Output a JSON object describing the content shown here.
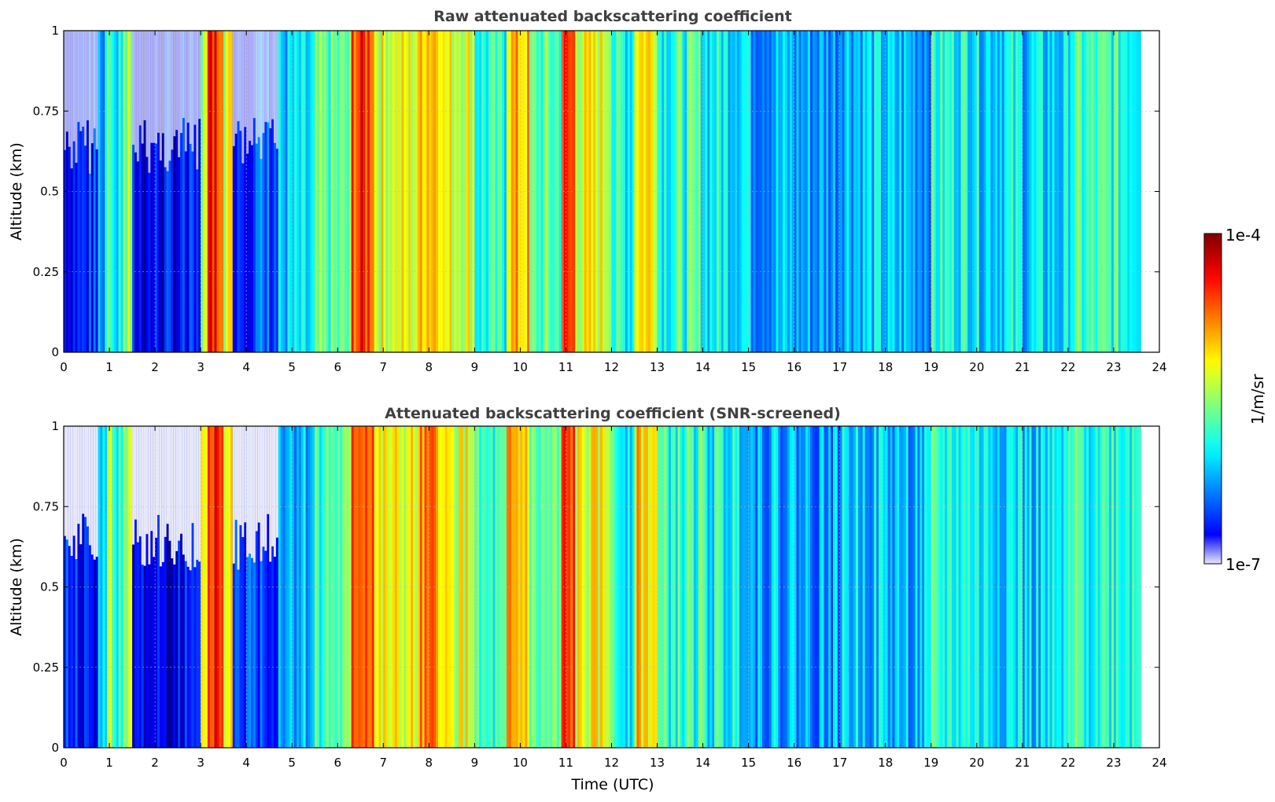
{
  "chart_data": [
    {
      "type": "heatmap",
      "title": "Raw attenuated backscattering coefficient",
      "xlabel": "",
      "ylabel": "Altitude (km)",
      "xlim": [
        0,
        24
      ],
      "ylim": [
        0,
        1
      ],
      "x_ticks": [
        "0",
        "1",
        "2",
        "3",
        "4",
        "5",
        "6",
        "7",
        "8",
        "9",
        "10",
        "11",
        "12",
        "13",
        "14",
        "15",
        "16",
        "17",
        "18",
        "19",
        "20",
        "21",
        "22",
        "23",
        "24"
      ],
      "y_ticks": [
        "0",
        "0.25",
        "0.5",
        "0.75",
        "1"
      ],
      "y_tick_values": [
        0,
        0.25,
        0.5,
        0.75,
        1
      ],
      "grid": true,
      "data_end_time": 23.6,
      "bands": [
        {
          "t0": 0.0,
          "t1": 0.75,
          "level": 0.15
        },
        {
          "t0": 0.75,
          "t1": 0.95,
          "level": 0.3
        },
        {
          "t0": 0.95,
          "t1": 1.05,
          "level": 0.5
        },
        {
          "t0": 1.05,
          "t1": 1.3,
          "level": 0.38
        },
        {
          "t0": 1.3,
          "t1": 1.5,
          "level": 0.55
        },
        {
          "t0": 1.5,
          "t1": 3.0,
          "level": 0.12
        },
        {
          "t0": 3.0,
          "t1": 3.15,
          "level": 0.55
        },
        {
          "t0": 3.15,
          "t1": 3.5,
          "level": 0.85
        },
        {
          "t0": 3.5,
          "t1": 3.7,
          "level": 0.6
        },
        {
          "t0": 3.7,
          "t1": 4.7,
          "level": 0.2
        },
        {
          "t0": 4.7,
          "t1": 5.5,
          "level": 0.32
        },
        {
          "t0": 5.5,
          "t1": 6.3,
          "level": 0.45
        },
        {
          "t0": 6.3,
          "t1": 6.8,
          "level": 0.82
        },
        {
          "t0": 6.8,
          "t1": 7.8,
          "level": 0.6
        },
        {
          "t0": 7.8,
          "t1": 8.3,
          "level": 0.72
        },
        {
          "t0": 8.3,
          "t1": 9.0,
          "level": 0.6
        },
        {
          "t0": 9.0,
          "t1": 9.7,
          "level": 0.4
        },
        {
          "t0": 9.7,
          "t1": 10.2,
          "level": 0.68
        },
        {
          "t0": 10.2,
          "t1": 10.9,
          "level": 0.45
        },
        {
          "t0": 10.9,
          "t1": 11.2,
          "level": 0.8
        },
        {
          "t0": 11.2,
          "t1": 12.0,
          "level": 0.6
        },
        {
          "t0": 12.0,
          "t1": 12.5,
          "level": 0.4
        },
        {
          "t0": 12.5,
          "t1": 13.0,
          "level": 0.66
        },
        {
          "t0": 13.0,
          "t1": 14.0,
          "level": 0.42
        },
        {
          "t0": 14.0,
          "t1": 15.0,
          "level": 0.38
        },
        {
          "t0": 15.0,
          "t1": 16.0,
          "level": 0.3
        },
        {
          "t0": 16.0,
          "t1": 17.0,
          "level": 0.28
        },
        {
          "t0": 17.0,
          "t1": 18.0,
          "level": 0.33
        },
        {
          "t0": 18.0,
          "t1": 19.0,
          "level": 0.3
        },
        {
          "t0": 19.0,
          "t1": 20.0,
          "level": 0.4
        },
        {
          "t0": 20.0,
          "t1": 21.0,
          "level": 0.36
        },
        {
          "t0": 21.0,
          "t1": 22.0,
          "level": 0.33
        },
        {
          "t0": 22.0,
          "t1": 23.6,
          "level": 0.42
        }
      ]
    },
    {
      "type": "heatmap",
      "title": "Attenuated backscattering coefficient (SNR-screened)",
      "xlabel": "Time (UTC)",
      "ylabel": "Altitude (km)",
      "xlim": [
        0,
        24
      ],
      "ylim": [
        0,
        1
      ],
      "x_ticks": [
        "0",
        "1",
        "2",
        "3",
        "4",
        "5",
        "6",
        "7",
        "8",
        "9",
        "10",
        "11",
        "12",
        "13",
        "14",
        "15",
        "16",
        "17",
        "18",
        "19",
        "20",
        "21",
        "22",
        "23",
        "24"
      ],
      "y_ticks": [
        "0",
        "0.25",
        "0.5",
        "0.75",
        "1"
      ],
      "y_tick_values": [
        0,
        0.25,
        0.5,
        0.75,
        1
      ],
      "grid": true,
      "data_end_time": 23.6,
      "bands": [
        {
          "t0": 0.0,
          "t1": 0.75,
          "level": 0.15
        },
        {
          "t0": 0.75,
          "t1": 0.95,
          "level": 0.3
        },
        {
          "t0": 0.95,
          "t1": 1.05,
          "level": 0.5
        },
        {
          "t0": 1.05,
          "t1": 1.3,
          "level": 0.38
        },
        {
          "t0": 1.3,
          "t1": 1.5,
          "level": 0.55
        },
        {
          "t0": 1.5,
          "t1": 3.0,
          "level": 0.12
        },
        {
          "t0": 3.0,
          "t1": 3.15,
          "level": 0.55
        },
        {
          "t0": 3.15,
          "t1": 3.5,
          "level": 0.85
        },
        {
          "t0": 3.5,
          "t1": 3.7,
          "level": 0.6
        },
        {
          "t0": 3.7,
          "t1": 4.7,
          "level": 0.2
        },
        {
          "t0": 4.7,
          "t1": 5.5,
          "level": 0.32
        },
        {
          "t0": 5.5,
          "t1": 6.3,
          "level": 0.45
        },
        {
          "t0": 6.3,
          "t1": 6.8,
          "level": 0.82
        },
        {
          "t0": 6.8,
          "t1": 7.8,
          "level": 0.6
        },
        {
          "t0": 7.8,
          "t1": 8.3,
          "level": 0.72
        },
        {
          "t0": 8.3,
          "t1": 9.0,
          "level": 0.6
        },
        {
          "t0": 9.0,
          "t1": 9.7,
          "level": 0.4
        },
        {
          "t0": 9.7,
          "t1": 10.2,
          "level": 0.68
        },
        {
          "t0": 10.2,
          "t1": 10.9,
          "level": 0.45
        },
        {
          "t0": 10.9,
          "t1": 11.2,
          "level": 0.8
        },
        {
          "t0": 11.2,
          "t1": 12.0,
          "level": 0.6
        },
        {
          "t0": 12.0,
          "t1": 12.5,
          "level": 0.4
        },
        {
          "t0": 12.5,
          "t1": 13.0,
          "level": 0.66
        },
        {
          "t0": 13.0,
          "t1": 14.0,
          "level": 0.42
        },
        {
          "t0": 14.0,
          "t1": 15.0,
          "level": 0.38
        },
        {
          "t0": 15.0,
          "t1": 16.0,
          "level": 0.3
        },
        {
          "t0": 16.0,
          "t1": 17.0,
          "level": 0.28
        },
        {
          "t0": 17.0,
          "t1": 18.0,
          "level": 0.33
        },
        {
          "t0": 18.0,
          "t1": 19.0,
          "level": 0.3
        },
        {
          "t0": 19.0,
          "t1": 20.0,
          "level": 0.4
        },
        {
          "t0": 20.0,
          "t1": 21.0,
          "level": 0.36
        },
        {
          "t0": 21.0,
          "t1": 22.0,
          "level": 0.33
        },
        {
          "t0": 22.0,
          "t1": 23.6,
          "level": 0.42
        }
      ]
    }
  ],
  "colorbar": {
    "label": "1/m/sr",
    "max_label": "1e-4",
    "min_label": "1e-7",
    "colormap": "jet",
    "low_color": "#e8e8f8",
    "high_color": "#800000"
  }
}
